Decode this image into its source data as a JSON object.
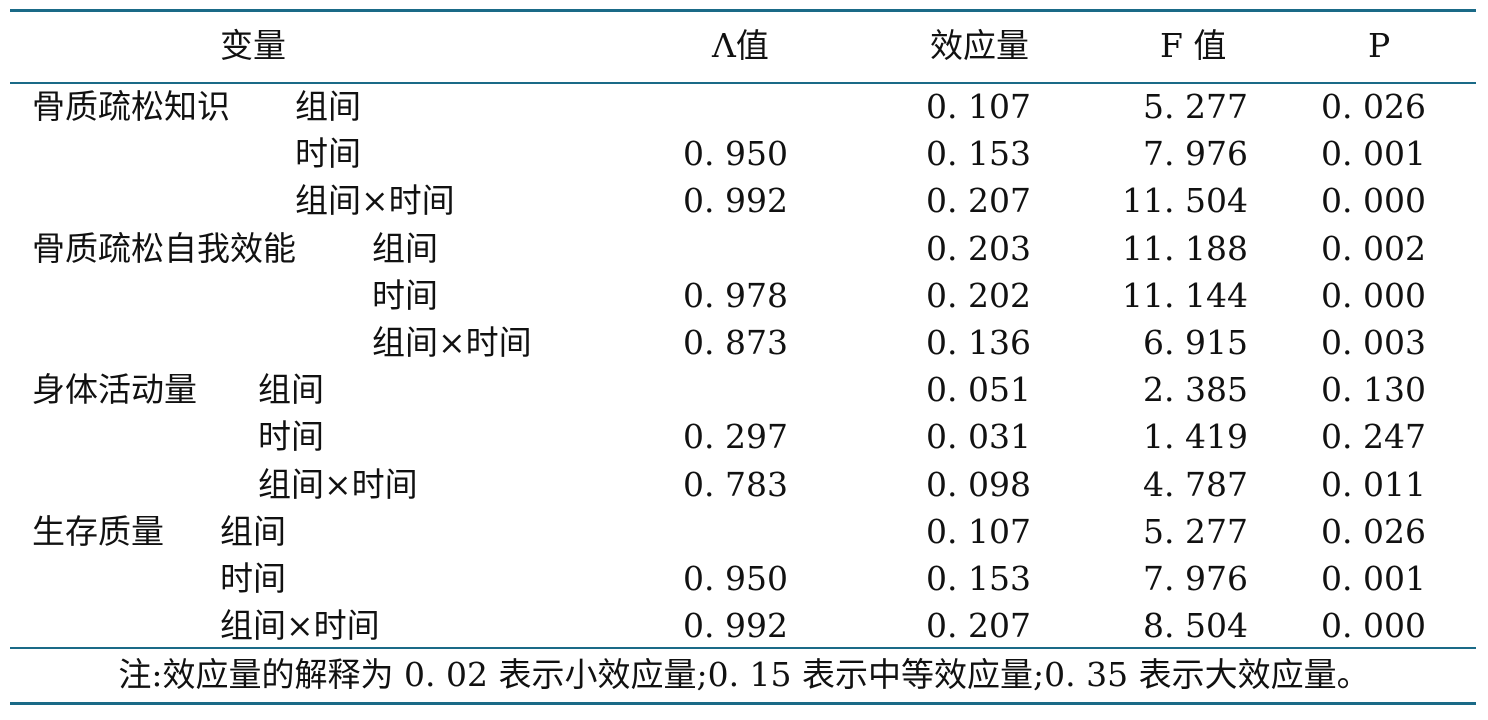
{
  "header": {
    "variable": "变量",
    "lambda": "Λ值",
    "effect": "效应量",
    "f": "F 值",
    "p": "P"
  },
  "groups": [
    {
      "name": "骨质疏松知识",
      "rows": [
        {
          "label": "组间",
          "lambda": "",
          "effect": "0. 107",
          "f": "5. 277",
          "p": "0. 026"
        },
        {
          "label": "时间",
          "lambda": "0. 950",
          "effect": "0. 153",
          "f": "7. 976",
          "p": "0. 001"
        },
        {
          "label": "组间×时间",
          "lambda": "0. 992",
          "effect": "0. 207",
          "f": "11. 504",
          "p": "0. 000"
        }
      ]
    },
    {
      "name": "骨质疏松自我效能",
      "rows": [
        {
          "label": "组间",
          "lambda": "",
          "effect": "0. 203",
          "f": "11. 188",
          "p": "0. 002"
        },
        {
          "label": "时间",
          "lambda": "0. 978",
          "effect": "0. 202",
          "f": "11. 144",
          "p": "0. 000"
        },
        {
          "label": "组间×时间",
          "lambda": "0. 873",
          "effect": "0. 136",
          "f": "6. 915",
          "p": "0. 003"
        }
      ]
    },
    {
      "name": "身体活动量",
      "rows": [
        {
          "label": "组间",
          "lambda": "",
          "effect": "0. 051",
          "f": "2. 385",
          "p": "0. 130"
        },
        {
          "label": "时间",
          "lambda": "0. 297",
          "effect": "0. 031",
          "f": "1. 419",
          "p": "0. 247"
        },
        {
          "label": "组间×时间",
          "lambda": "0. 783",
          "effect": "0. 098",
          "f": "4. 787",
          "p": "0. 011"
        }
      ]
    },
    {
      "name": "生存质量",
      "rows": [
        {
          "label": "组间",
          "lambda": "",
          "effect": "0. 107",
          "f": "5. 277",
          "p": "0. 026"
        },
        {
          "label": "时间",
          "lambda": "0. 950",
          "effect": "0. 153",
          "f": "7. 976",
          "p": "0. 001"
        },
        {
          "label": "组间×时间",
          "lambda": "0. 992",
          "effect": "0. 207",
          "f": "8. 504",
          "p": "0. 000"
        }
      ]
    }
  ],
  "note": "注:效应量的解释为 0. 02 表示小效应量;0. 15 表示中等效应量;0. 35 表示大效应量。",
  "colors": {
    "rule": "#1a6a87"
  }
}
